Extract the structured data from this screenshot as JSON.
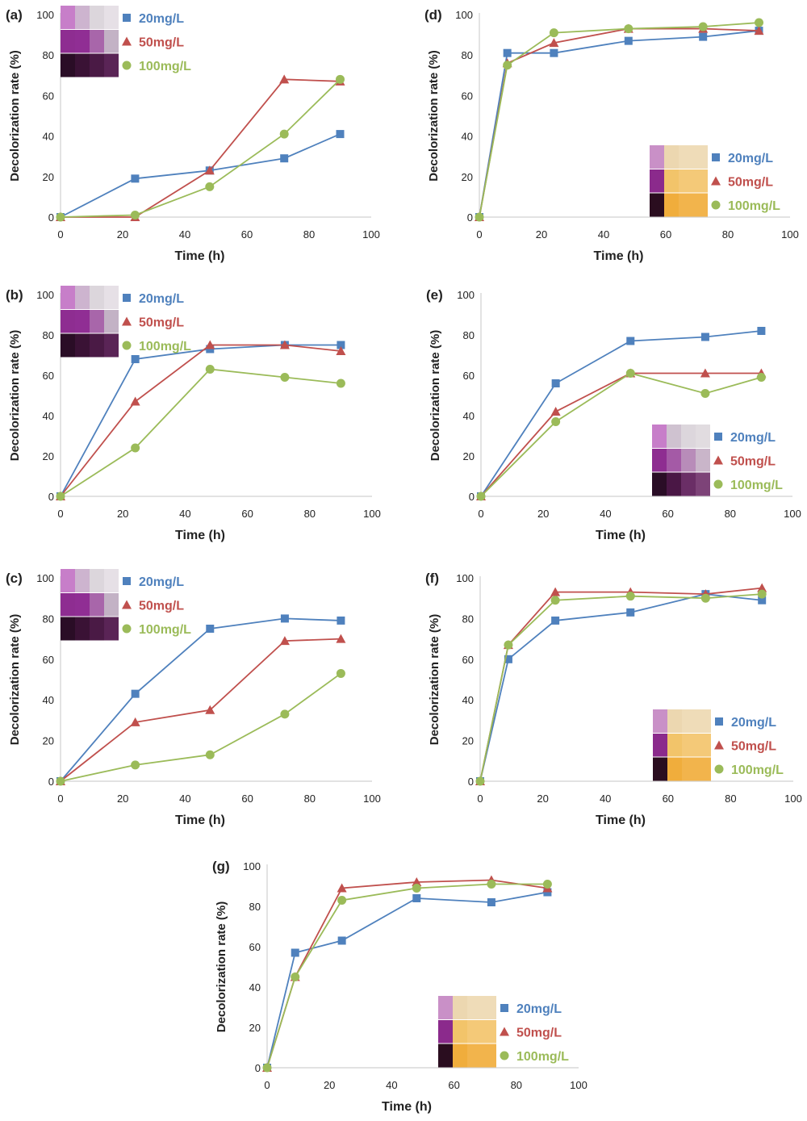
{
  "legend_labels": [
    "20mg/L",
    "50mg/L",
    "100mg/L"
  ],
  "colors": {
    "series_20": "#4f81bd",
    "series_50": "#c0504d",
    "series_100": "#9bbb59",
    "axis": "#d0d0d0",
    "text": "#222222"
  },
  "chart_data": [
    {
      "panel": "(a)",
      "type": "line",
      "xlabel": "Time (h)",
      "ylabel": "Decolorization rate (%)",
      "xlim": [
        0,
        100
      ],
      "ylim": [
        0,
        100
      ],
      "xticks": [
        0,
        20,
        40,
        60,
        80,
        100
      ],
      "yticks": [
        0,
        20,
        40,
        60,
        80,
        100
      ],
      "x": [
        0,
        24,
        48,
        72,
        90
      ],
      "legend_position": "top-left",
      "swatch": "purple",
      "series": [
        {
          "name": "20mg/L",
          "values": [
            0,
            19,
            23,
            29,
            41
          ]
        },
        {
          "name": "50mg/L",
          "values": [
            0,
            0,
            23,
            68,
            67
          ]
        },
        {
          "name": "100mg/L",
          "values": [
            0,
            1,
            15,
            41,
            68
          ]
        }
      ]
    },
    {
      "panel": "(d)",
      "type": "line",
      "xlabel": "Time (h)",
      "ylabel": "Decolorization rate (%)",
      "xlim": [
        0,
        100
      ],
      "ylim": [
        0,
        100
      ],
      "xticks": [
        0,
        20,
        40,
        60,
        80,
        100
      ],
      "yticks": [
        0,
        20,
        40,
        60,
        80,
        100
      ],
      "x": [
        0,
        9,
        24,
        48,
        72,
        90
      ],
      "legend_position": "bottom-right",
      "swatch": "yellow",
      "series": [
        {
          "name": "20mg/L",
          "values": [
            0,
            81,
            81,
            87,
            89,
            92
          ]
        },
        {
          "name": "50mg/L",
          "values": [
            0,
            76,
            86,
            93,
            93,
            92
          ]
        },
        {
          "name": "100mg/L",
          "values": [
            0,
            75,
            91,
            93,
            94,
            96
          ]
        }
      ]
    },
    {
      "panel": "(b)",
      "type": "line",
      "xlabel": "Time (h)",
      "ylabel": "Decolorization rate (%)",
      "xlim": [
        0,
        100
      ],
      "ylim": [
        0,
        100
      ],
      "xticks": [
        0,
        20,
        40,
        60,
        80,
        100
      ],
      "yticks": [
        0,
        20,
        40,
        60,
        80,
        100
      ],
      "x": [
        0,
        24,
        48,
        72,
        90
      ],
      "legend_position": "top-left",
      "swatch": "purple",
      "series": [
        {
          "name": "20mg/L",
          "values": [
            0,
            68,
            73,
            75,
            75
          ]
        },
        {
          "name": "50mg/L",
          "values": [
            0,
            47,
            75,
            75,
            72
          ]
        },
        {
          "name": "100mg/L",
          "values": [
            0,
            24,
            63,
            59,
            56
          ]
        }
      ]
    },
    {
      "panel": "(e)",
      "type": "line",
      "xlabel": "Time (h)",
      "ylabel": "Decolorization rate (%)",
      "xlim": [
        0,
        100
      ],
      "ylim": [
        0,
        100
      ],
      "xticks": [
        0,
        20,
        40,
        60,
        80,
        100
      ],
      "yticks": [
        0,
        20,
        40,
        60,
        80,
        100
      ],
      "x": [
        0,
        24,
        48,
        72,
        90
      ],
      "legend_position": "bottom-right",
      "swatch": "purple",
      "series": [
        {
          "name": "20mg/L",
          "values": [
            0,
            56,
            77,
            79,
            82
          ]
        },
        {
          "name": "50mg/L",
          "values": [
            0,
            42,
            61,
            61,
            61
          ]
        },
        {
          "name": "100mg/L",
          "values": [
            0,
            37,
            61,
            51,
            59
          ]
        }
      ]
    },
    {
      "panel": "(c)",
      "type": "line",
      "xlabel": "Time (h)",
      "ylabel": "Decolorization rate (%)",
      "xlim": [
        0,
        100
      ],
      "ylim": [
        0,
        100
      ],
      "xticks": [
        0,
        20,
        40,
        60,
        80,
        100
      ],
      "yticks": [
        0,
        20,
        40,
        60,
        80,
        100
      ],
      "x": [
        0,
        24,
        48,
        72,
        90
      ],
      "legend_position": "top-left",
      "swatch": "purple",
      "series": [
        {
          "name": "20mg/L",
          "values": [
            0,
            43,
            75,
            80,
            79
          ]
        },
        {
          "name": "50mg/L",
          "values": [
            0,
            29,
            35,
            69,
            70
          ]
        },
        {
          "name": "100mg/L",
          "values": [
            0,
            8,
            13,
            33,
            53
          ]
        }
      ]
    },
    {
      "panel": "(f)",
      "type": "line",
      "xlabel": "Time (h)",
      "ylabel": "Decolorization rate (%)",
      "xlim": [
        0,
        100
      ],
      "ylim": [
        0,
        100
      ],
      "xticks": [
        0,
        20,
        40,
        60,
        80,
        100
      ],
      "yticks": [
        0,
        20,
        40,
        60,
        80,
        100
      ],
      "x": [
        0,
        9,
        24,
        48,
        72,
        90
      ],
      "legend_position": "bottom-right",
      "swatch": "yellow",
      "series": [
        {
          "name": "20mg/L",
          "values": [
            0,
            60,
            79,
            83,
            92,
            89
          ]
        },
        {
          "name": "50mg/L",
          "values": [
            0,
            67,
            93,
            93,
            92,
            95
          ]
        },
        {
          "name": "100mg/L",
          "values": [
            0,
            67,
            89,
            91,
            90,
            92
          ]
        }
      ]
    },
    {
      "panel": "(g)",
      "type": "line",
      "xlabel": "Time (h)",
      "ylabel": "Decolorization rate (%)",
      "xlim": [
        0,
        100
      ],
      "ylim": [
        0,
        100
      ],
      "xticks": [
        0,
        20,
        40,
        60,
        80,
        100
      ],
      "yticks": [
        0,
        20,
        40,
        60,
        80,
        100
      ],
      "x": [
        0,
        9,
        24,
        48,
        72,
        90
      ],
      "legend_position": "bottom-right",
      "swatch": "yellow",
      "series": [
        {
          "name": "20mg/L",
          "values": [
            0,
            57,
            63,
            84,
            82,
            87
          ]
        },
        {
          "name": "50mg/L",
          "values": [
            0,
            45,
            89,
            92,
            93,
            89
          ]
        },
        {
          "name": "100mg/L",
          "values": [
            0,
            45,
            83,
            89,
            91,
            91
          ]
        }
      ]
    }
  ]
}
